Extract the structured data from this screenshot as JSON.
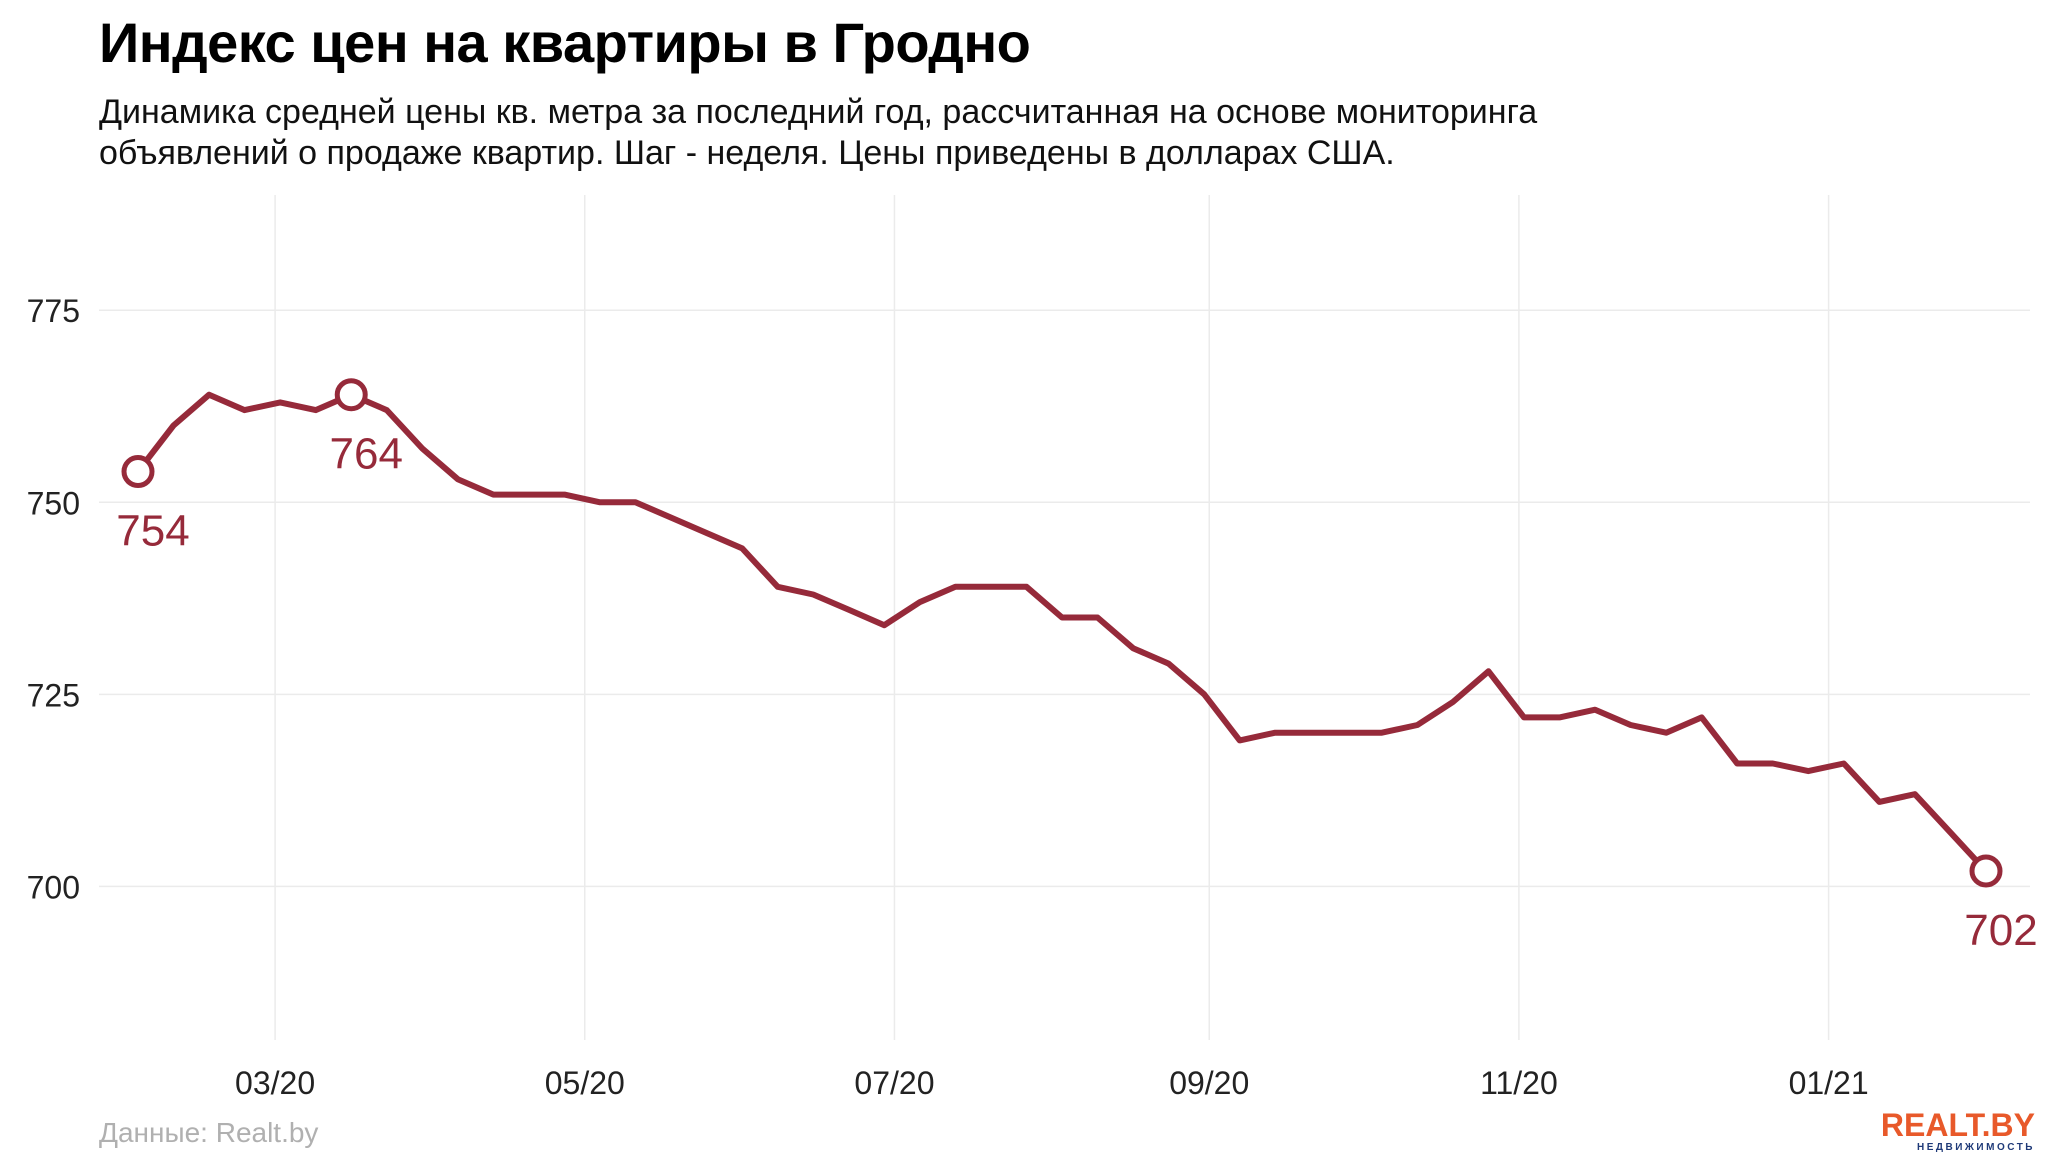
{
  "header": {
    "title": "Индекс цен на квартиры в Гродно",
    "subtitle_line1": "Динамика средней цены кв. метра за последний год, рассчитанная на основе мониторинга",
    "subtitle_line2": "объявлений о продаже квартир. Шаг - неделя. Цены приведены в долларах США."
  },
  "footer": {
    "source": "Данные: Realt.by",
    "logo_main": "REALT.BY",
    "logo_sub": "НЕДВИЖИМОСТЬ"
  },
  "colors": {
    "line": "#962a3a",
    "grid": "#ebebeb",
    "axis_text": "#222222",
    "source_text": "#b0b0b0",
    "logo_orange": "#e8592a",
    "logo_blue": "#1f3a78"
  },
  "chart_data": {
    "type": "line",
    "title": "Индекс цен на квартиры в Гродно",
    "xlabel": "",
    "ylabel": "",
    "x_ticks": [
      "03/20",
      "05/20",
      "07/20",
      "09/20",
      "11/20",
      "01/21"
    ],
    "y_ticks": [
      700,
      725,
      750,
      775
    ],
    "ylim": [
      680,
      790
    ],
    "grid": true,
    "legend": "none",
    "series": [
      {
        "x": [
          "2020-02-03",
          "2020-02-10",
          "2020-02-17",
          "2020-02-24",
          "2020-03-02",
          "2020-03-09",
          "2020-03-16",
          "2020-03-23",
          "2020-03-30",
          "2020-04-06",
          "2020-04-13",
          "2020-04-20",
          "2020-04-27",
          "2020-05-04",
          "2020-05-11",
          "2020-05-18",
          "2020-05-25",
          "2020-06-01",
          "2020-06-08",
          "2020-06-15",
          "2020-06-22",
          "2020-06-29",
          "2020-07-06",
          "2020-07-13",
          "2020-07-20",
          "2020-07-27",
          "2020-08-03",
          "2020-08-10",
          "2020-08-17",
          "2020-08-24",
          "2020-08-31",
          "2020-09-07",
          "2020-09-14",
          "2020-09-21",
          "2020-09-28",
          "2020-10-05",
          "2020-10-12",
          "2020-10-19",
          "2020-10-26",
          "2020-11-02",
          "2020-11-09",
          "2020-11-16",
          "2020-11-23",
          "2020-11-30",
          "2020-12-07",
          "2020-12-14",
          "2020-12-21",
          "2020-12-28",
          "2021-01-04",
          "2021-01-11",
          "2021-01-18",
          "2021-01-25",
          "2021-02-01"
        ],
        "values": [
          754,
          760,
          764,
          762,
          763,
          762,
          764,
          762,
          757,
          753,
          751,
          751,
          751,
          750,
          750,
          748,
          746,
          744,
          739,
          738,
          736,
          734,
          737,
          739,
          739,
          739,
          735,
          735,
          731,
          729,
          725,
          719,
          720,
          720,
          720,
          720,
          721,
          724,
          728,
          722,
          722,
          723,
          721,
          720,
          722,
          716,
          716,
          715,
          716,
          711,
          712,
          707,
          702
        ]
      }
    ],
    "annotations": [
      {
        "x": "2020-02-03",
        "value": 754,
        "label": "754"
      },
      {
        "x": "2020-03-16",
        "value": 764,
        "label": "764"
      },
      {
        "x": "2021-02-01",
        "value": 702,
        "label": "702"
      }
    ]
  }
}
